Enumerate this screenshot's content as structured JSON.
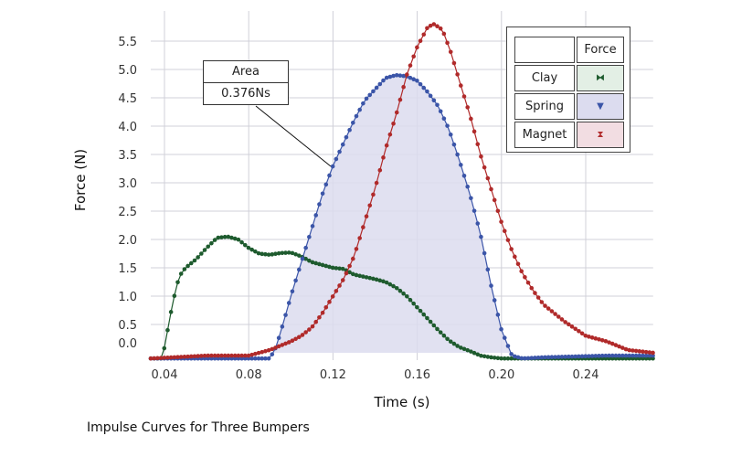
{
  "chart_data": {
    "type": "line",
    "title": "Impulse Curves for Three Bumpers",
    "xlabel": "Time (s)",
    "ylabel": "Force (N)",
    "xlim": [
      0.0335,
      0.272
    ],
    "ylim": [
      -0.15,
      5.85
    ],
    "xticks": [
      "0.04",
      "0.08",
      "0.12",
      "0.16",
      "0.20",
      "0.24"
    ],
    "xtick_values": [
      0.04,
      0.08,
      0.12,
      0.16,
      0.2,
      0.24
    ],
    "yticks": [
      "0.0",
      "0.5",
      "1.0",
      "1.5",
      "2.0",
      "2.5",
      "3.0",
      "3.5",
      "4.0",
      "4.5",
      "5.0",
      "5.5"
    ],
    "grid": true,
    "legend": {
      "header": "Force",
      "placement": "top-right"
    },
    "annotation": {
      "title": "Area",
      "value": "0.376Ns"
    },
    "series": [
      {
        "name": "Clay",
        "color": "#1e5b2e",
        "fill": "#e3efe5",
        "symbol": "⧓",
        "x": [
          0.0335,
          0.039,
          0.041,
          0.044,
          0.047,
          0.05,
          0.055,
          0.06,
          0.065,
          0.07,
          0.075,
          0.08,
          0.085,
          0.09,
          0.095,
          0.1,
          0.105,
          0.11,
          0.12,
          0.125,
          0.13,
          0.14,
          0.145,
          0.15,
          0.155,
          0.16,
          0.165,
          0.17,
          0.175,
          0.18,
          0.185,
          0.19,
          0.195,
          0.2,
          0.205
        ],
        "y": [
          -0.1,
          -0.1,
          0.3,
          0.9,
          1.35,
          1.5,
          1.65,
          1.85,
          2.03,
          2.05,
          2.0,
          1.85,
          1.75,
          1.73,
          1.76,
          1.77,
          1.7,
          1.6,
          1.5,
          1.48,
          1.38,
          1.3,
          1.25,
          1.15,
          1.0,
          0.8,
          0.6,
          0.4,
          0.22,
          0.1,
          0.03,
          -0.05,
          -0.08,
          -0.1,
          -0.1
        ]
      },
      {
        "name": "Spring",
        "color": "#3b55a8",
        "fill": "#dcdcef",
        "symbol": "▼",
        "x": [
          0.0335,
          0.08,
          0.09,
          0.093,
          0.097,
          0.1,
          0.105,
          0.11,
          0.115,
          0.12,
          0.125,
          0.13,
          0.135,
          0.14,
          0.145,
          0.15,
          0.155,
          0.16,
          0.165,
          0.17,
          0.175,
          0.18,
          0.185,
          0.19,
          0.195,
          0.2,
          0.205,
          0.21,
          0.22,
          0.25,
          0.272
        ],
        "y": [
          -0.1,
          -0.1,
          -0.1,
          0.1,
          0.6,
          1.0,
          1.6,
          2.2,
          2.8,
          3.3,
          3.7,
          4.1,
          4.45,
          4.65,
          4.85,
          4.9,
          4.88,
          4.8,
          4.6,
          4.35,
          3.95,
          3.4,
          2.8,
          2.1,
          1.2,
          0.4,
          -0.05,
          -0.1,
          -0.08,
          -0.05,
          -0.05
        ]
      },
      {
        "name": "Magnet",
        "color": "#b02a2a",
        "fill": "#f2dde2",
        "symbol": "⧗",
        "x": [
          0.0335,
          0.06,
          0.08,
          0.09,
          0.1,
          0.105,
          0.11,
          0.115,
          0.12,
          0.125,
          0.13,
          0.135,
          0.14,
          0.145,
          0.15,
          0.155,
          0.16,
          0.165,
          0.168,
          0.172,
          0.176,
          0.18,
          0.185,
          0.19,
          0.195,
          0.2,
          0.205,
          0.21,
          0.215,
          0.22,
          0.23,
          0.24,
          0.25,
          0.26,
          0.272
        ],
        "y": [
          -0.1,
          -0.05,
          -0.05,
          0.05,
          0.2,
          0.3,
          0.45,
          0.7,
          1.0,
          1.3,
          1.7,
          2.3,
          2.9,
          3.6,
          4.2,
          4.9,
          5.4,
          5.75,
          5.8,
          5.7,
          5.3,
          4.8,
          4.2,
          3.5,
          2.9,
          2.3,
          1.8,
          1.4,
          1.1,
          0.85,
          0.55,
          0.3,
          0.2,
          0.05,
          0.0
        ]
      }
    ]
  }
}
